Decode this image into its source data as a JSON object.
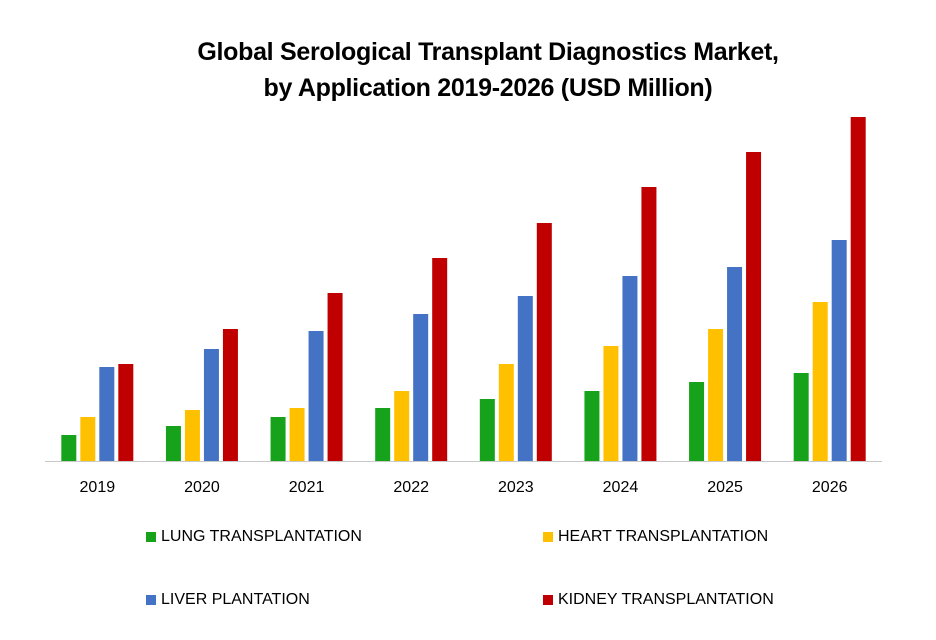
{
  "chart_data": {
    "type": "bar",
    "title_line1": "Global Serological Transplant Diagnostics Market,",
    "title_line2": "by Application 2019-2026 (USD Million)",
    "xlabel": "",
    "ylabel": "USD Million",
    "ylim": [
      0,
      400
    ],
    "grid": false,
    "legend_position": "bottom",
    "categories": [
      "2019",
      "2020",
      "2021",
      "2022",
      "2023",
      "2024",
      "2025",
      "2026"
    ],
    "series": [
      {
        "name": "LUNG TRANSPLANTATION",
        "color": "#16a31b",
        "values": [
          26,
          35,
          44,
          53,
          62,
          70,
          79,
          88
        ]
      },
      {
        "name": "HEART TRANSPLANTATION",
        "color": "#ffc000",
        "values": [
          44,
          51,
          53,
          70,
          97,
          115,
          132,
          159
        ]
      },
      {
        "name": "LIVER PLANTATION",
        "color": "#4472c4",
        "values": [
          94,
          112,
          130,
          147,
          165,
          185,
          194,
          221
        ]
      },
      {
        "name": "KIDNEY TRANSPLANTATION",
        "color": "#c00000",
        "values": [
          97,
          132,
          168,
          203,
          238,
          274,
          309,
          344
        ]
      }
    ]
  }
}
